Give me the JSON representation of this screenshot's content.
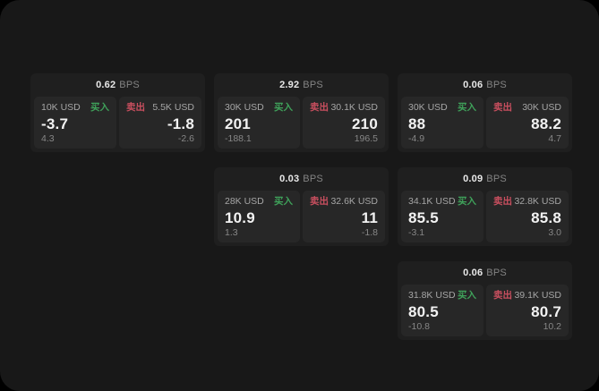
{
  "board": {
    "unit_label": "BPS",
    "buy_label": "买入",
    "sell_label": "卖出",
    "colors": {
      "buy": "#3fa15a",
      "sell": "#c94f5f",
      "window_bg": "#181818",
      "card_bg": "#1f1f1f",
      "panel_bg": "#272727"
    }
  },
  "cards": [
    {
      "col": 1,
      "row": 1,
      "bps_value": "0.62",
      "bps_unit": "BPS",
      "buy": {
        "size": "10K USD",
        "side_label": "买入",
        "price": "-3.7",
        "delta": "4.3"
      },
      "sell": {
        "size": "5.5K USD",
        "side_label": "卖出",
        "price": "-1.8",
        "delta": "-2.6"
      }
    },
    {
      "col": 2,
      "row": 1,
      "bps_value": "2.92",
      "bps_unit": "BPS",
      "buy": {
        "size": "30K USD",
        "side_label": "买入",
        "price": "201",
        "delta": "-188.1"
      },
      "sell": {
        "size": "30.1K USD",
        "side_label": "卖出",
        "price": "210",
        "delta": "196.5"
      }
    },
    {
      "col": 3,
      "row": 1,
      "bps_value": "0.06",
      "bps_unit": "BPS",
      "buy": {
        "size": "30K USD",
        "side_label": "买入",
        "price": "88",
        "delta": "-4.9"
      },
      "sell": {
        "size": "30K USD",
        "side_label": "卖出",
        "price": "88.2",
        "delta": "4.7"
      }
    },
    {
      "col": 2,
      "row": 2,
      "bps_value": "0.03",
      "bps_unit": "BPS",
      "buy": {
        "size": "28K USD",
        "side_label": "买入",
        "price": "10.9",
        "delta": "1.3"
      },
      "sell": {
        "size": "32.6K USD",
        "side_label": "卖出",
        "price": "11",
        "delta": "-1.8"
      }
    },
    {
      "col": 3,
      "row": 2,
      "bps_value": "0.09",
      "bps_unit": "BPS",
      "buy": {
        "size": "34.1K USD",
        "side_label": "买入",
        "price": "85.5",
        "delta": "-3.1"
      },
      "sell": {
        "size": "32.8K USD",
        "side_label": "卖出",
        "price": "85.8",
        "delta": "3.0"
      }
    },
    {
      "col": 3,
      "row": 3,
      "bps_value": "0.06",
      "bps_unit": "BPS",
      "buy": {
        "size": "31.8K USD",
        "side_label": "买入",
        "price": "80.5",
        "delta": "-10.8"
      },
      "sell": {
        "size": "39.1K USD",
        "side_label": "卖出",
        "price": "80.7",
        "delta": "10.2"
      }
    }
  ]
}
